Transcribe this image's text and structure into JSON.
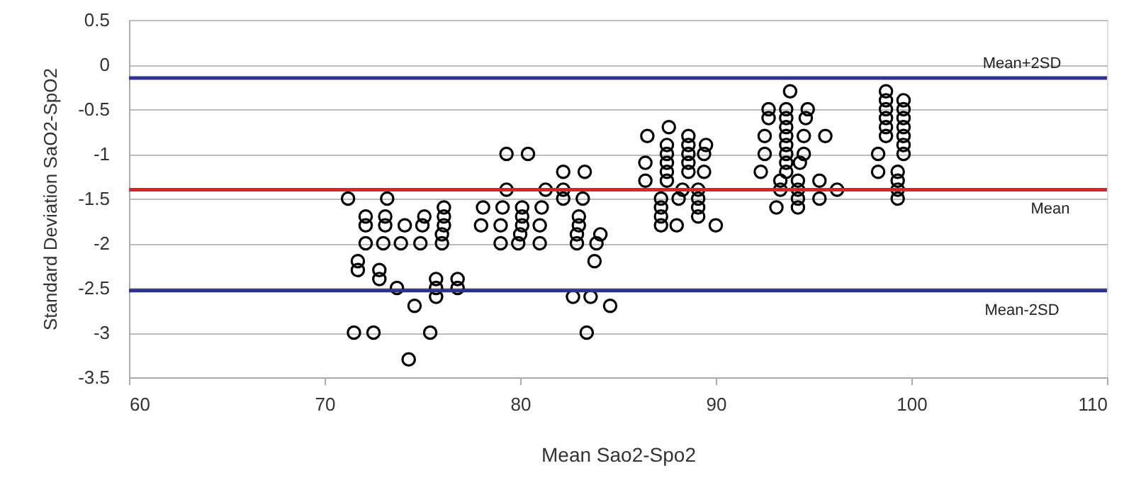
{
  "chart_data": {
    "type": "scatter",
    "xlabel": "Mean Sao2-Spo2",
    "ylabel": "Standard Deviation SaO2-SpO2",
    "xlim": [
      60,
      110
    ],
    "xticks": [
      60,
      70,
      80,
      90,
      100,
      110
    ],
    "ylim": [
      -3.5,
      0.5
    ],
    "yticks": [
      -3.5,
      -3,
      -2.5,
      -2,
      -1.5,
      -1,
      -0.5,
      0,
      0.5
    ],
    "grid": "y",
    "marker": "circle",
    "ref_lines": [
      {
        "axis": "y",
        "value": -0.15,
        "label": "Mean+2SD",
        "color": "#2e3192"
      },
      {
        "axis": "y",
        "value": -1.4,
        "label": "Mean",
        "color": "#d9262b"
      },
      {
        "axis": "y",
        "value": -2.53,
        "label": "Mean-2SD",
        "color": "#2e3192"
      }
    ],
    "series": [
      {
        "color": "#000000",
        "x": [
          71.2,
          73.2,
          72.1,
          72.1,
          72.1,
          73.1,
          73.1,
          73.0,
          74.1,
          73.9,
          75.1,
          75.0,
          74.9,
          76.1,
          76.1,
          76.1,
          76.0,
          76.0,
          71.7,
          71.7,
          72.8,
          72.8,
          73.7,
          75.7,
          75.7,
          75.7,
          76.8,
          76.8,
          74.6,
          71.5,
          72.5,
          75.4,
          74.3,
          78.1,
          78.0,
          79.1,
          79.0,
          79.0,
          79.3,
          79.3,
          80.1,
          80.1,
          80.1,
          80.0,
          79.9,
          80.4,
          81.1,
          81.0,
          81.0,
          81.3,
          82.2,
          83.3,
          82.2,
          82.2,
          83.2,
          83.0,
          83.0,
          82.9,
          82.9,
          84.1,
          83.9,
          83.8,
          82.7,
          83.6,
          84.6,
          83.4,
          86.5,
          87.6,
          86.4,
          86.4,
          87.5,
          87.5,
          87.5,
          87.5,
          87.5,
          87.2,
          87.2,
          87.2,
          87.2,
          88.0,
          88.6,
          88.6,
          88.6,
          88.6,
          88.6,
          88.3,
          88.1,
          89.5,
          89.4,
          89.4,
          89.1,
          89.1,
          89.1,
          89.1,
          90.0,
          93.8,
          92.7,
          92.7,
          93.6,
          93.6,
          93.6,
          93.6,
          93.6,
          93.6,
          93.6,
          93.6,
          94.7,
          94.6,
          92.5,
          92.5,
          92.3,
          94.5,
          94.5,
          94.3,
          95.6,
          93.3,
          93.3,
          94.2,
          94.2,
          94.2,
          94.2,
          93.1,
          95.3,
          95.3,
          96.2,
          98.7,
          98.7,
          98.7,
          98.7,
          98.7,
          98.7,
          99.6,
          99.6,
          99.6,
          99.6,
          99.6,
          99.6,
          99.6,
          98.3,
          98.3,
          99.3,
          99.3,
          99.3,
          99.3
        ],
        "values": [
          -1.5,
          -1.5,
          -1.7,
          -1.8,
          -2.0,
          -1.7,
          -1.8,
          -2.0,
          -1.8,
          -2.0,
          -1.7,
          -1.8,
          -2.0,
          -1.6,
          -1.7,
          -1.8,
          -1.9,
          -2.0,
          -2.2,
          -2.3,
          -2.3,
          -2.4,
          -2.5,
          -2.4,
          -2.5,
          -2.6,
          -2.4,
          -2.5,
          -2.7,
          -3.0,
          -3.0,
          -3.0,
          -3.3,
          -1.6,
          -1.8,
          -1.6,
          -1.8,
          -2.0,
          -1.4,
          -1.0,
          -1.6,
          -1.7,
          -1.8,
          -1.9,
          -2.0,
          -1.0,
          -1.6,
          -1.8,
          -2.0,
          -1.4,
          -1.2,
          -1.2,
          -1.4,
          -1.5,
          -1.5,
          -1.7,
          -1.8,
          -1.9,
          -2.0,
          -1.9,
          -2.0,
          -2.2,
          -2.6,
          -2.6,
          -2.7,
          -3.0,
          -0.8,
          -0.7,
          -1.1,
          -1.3,
          -0.9,
          -1.0,
          -1.1,
          -1.2,
          -1.3,
          -1.5,
          -1.6,
          -1.7,
          -1.8,
          -1.8,
          -0.8,
          -0.9,
          -1.0,
          -1.1,
          -1.2,
          -1.4,
          -1.5,
          -0.9,
          -1.0,
          -1.2,
          -1.4,
          -1.5,
          -1.6,
          -1.7,
          -1.8,
          -0.3,
          -0.5,
          -0.6,
          -0.5,
          -0.6,
          -0.7,
          -0.8,
          -0.9,
          -1.0,
          -1.1,
          -1.2,
          -0.5,
          -0.6,
          -0.8,
          -1.0,
          -1.2,
          -0.8,
          -1.0,
          -1.1,
          -0.8,
          -1.3,
          -1.4,
          -1.3,
          -1.4,
          -1.5,
          -1.6,
          -1.6,
          -1.3,
          -1.5,
          -1.4,
          -0.3,
          -0.4,
          -0.5,
          -0.6,
          -0.7,
          -0.8,
          -0.4,
          -0.5,
          -0.6,
          -0.7,
          -0.8,
          -0.9,
          -1.0,
          -1.0,
          -1.2,
          -1.2,
          -1.3,
          -1.4,
          -1.5
        ]
      }
    ]
  }
}
